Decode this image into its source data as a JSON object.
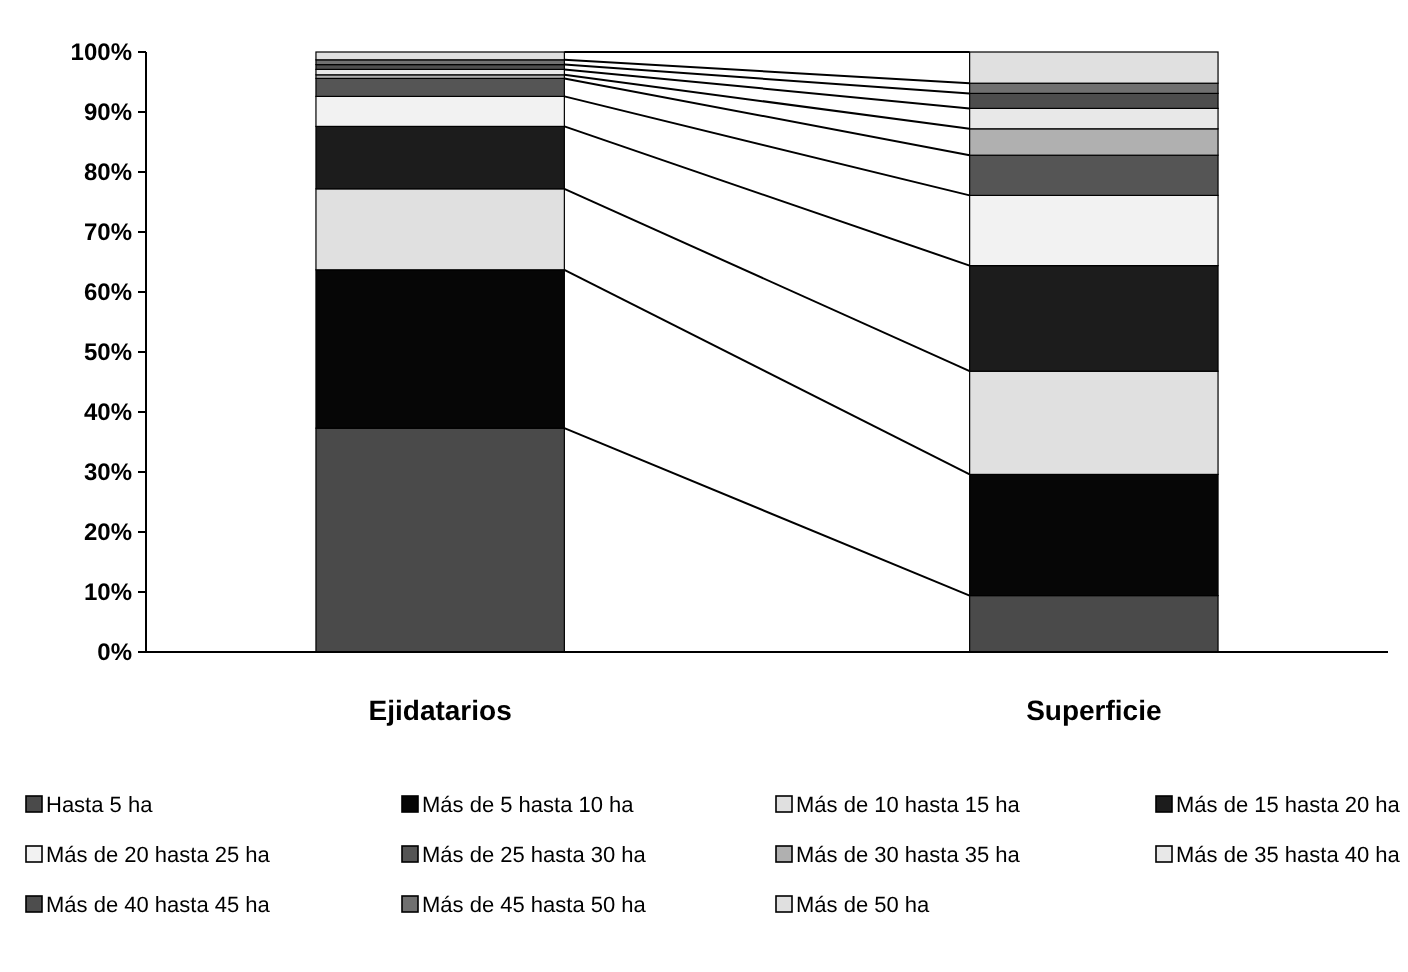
{
  "chart_data": {
    "type": "bar",
    "stacked": true,
    "categories": [
      "Ejidatarios",
      "Superficie"
    ],
    "series": [
      {
        "name": "Hasta 5 ha",
        "color": "#4a4a4a",
        "values": [
          37.3,
          9.4
        ]
      },
      {
        "name": "Más de 5 hasta 10 ha",
        "color": "#060606",
        "values": [
          26.4,
          20.2
        ]
      },
      {
        "name": "Más de 10 hasta 15 ha",
        "color": "#e0e0e0",
        "values": [
          13.5,
          17.2
        ]
      },
      {
        "name": "Más de 15 hasta 20 ha",
        "color": "#1c1c1c",
        "values": [
          10.4,
          17.6
        ]
      },
      {
        "name": "Más de 20 hasta 25 ha",
        "color": "#f2f2f2",
        "values": [
          5.0,
          11.7
        ]
      },
      {
        "name": "Más de 25 hasta 30 ha",
        "color": "#555555",
        "values": [
          3.0,
          6.7
        ]
      },
      {
        "name": "Más de 30 hasta 35 ha",
        "color": "#b0b0b0",
        "values": [
          0.6,
          4.4
        ]
      },
      {
        "name": "Más de 35 hasta 40 ha",
        "color": "#e8e8e8",
        "values": [
          0.9,
          3.4
        ]
      },
      {
        "name": "Más de 40 hasta 45 ha",
        "color": "#4d4d4d",
        "values": [
          0.8,
          2.5
        ]
      },
      {
        "name": "Más de 45 hasta 50 ha",
        "color": "#707070",
        "values": [
          0.8,
          1.7
        ]
      },
      {
        "name": "Más de 50 ha",
        "color": "#e0e0e0",
        "values": [
          1.3,
          5.2
        ]
      }
    ],
    "ylim": [
      0,
      100
    ],
    "yticks": [
      {
        "value": 0,
        "label": "0%"
      },
      {
        "value": 10,
        "label": "10%"
      },
      {
        "value": 20,
        "label": "20%"
      },
      {
        "value": 30,
        "label": "30%"
      },
      {
        "value": 40,
        "label": "40%"
      },
      {
        "value": 50,
        "label": "50%"
      },
      {
        "value": 60,
        "label": "60%"
      },
      {
        "value": 70,
        "label": "70%"
      },
      {
        "value": 80,
        "label": "80%"
      },
      {
        "value": 90,
        "label": "90%"
      },
      {
        "value": 100,
        "label": "100%"
      }
    ],
    "legend": "bottom"
  }
}
